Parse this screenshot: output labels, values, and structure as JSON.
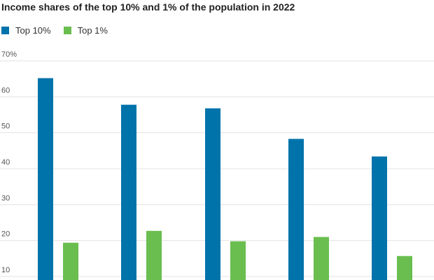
{
  "chart_data": {
    "type": "bar",
    "title": "Income shares of the top 10% and 1% of the population in 2022",
    "xlabel": "",
    "ylabel": "",
    "ylim": [
      7,
      70
    ],
    "yticks": [
      10,
      20,
      30,
      40,
      50,
      60,
      70
    ],
    "ytick_labels": [
      "10",
      "20",
      "30",
      "40",
      "50",
      "60",
      "70%"
    ],
    "grid": "horizontal",
    "legend_position": "top-left",
    "categories": [
      "",
      "",
      "",
      "",
      ""
    ],
    "series": [
      {
        "name": "Top 10%",
        "color": "#0073ab",
        "values": [
          65.2,
          57.8,
          56.8,
          48.3,
          43.4
        ]
      },
      {
        "name": "Top 1%",
        "color": "#6abe4f",
        "values": [
          19.4,
          22.7,
          19.8,
          21.0,
          15.7
        ]
      }
    ]
  }
}
